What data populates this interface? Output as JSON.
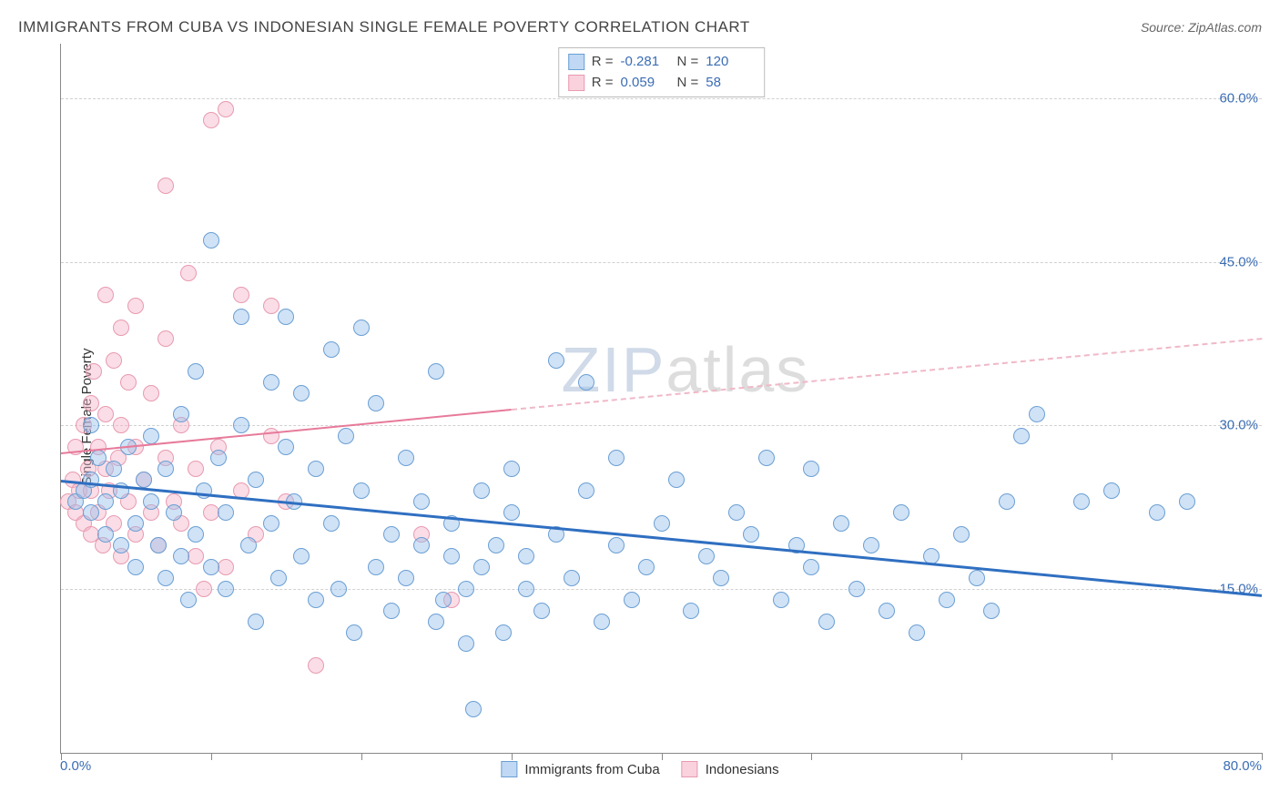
{
  "title": "IMMIGRANTS FROM CUBA VS INDONESIAN SINGLE FEMALE POVERTY CORRELATION CHART",
  "source": "Source: ZipAtlas.com",
  "ylabel": "Single Female Poverty",
  "watermark": {
    "part1": "ZIP",
    "part2": "atlas"
  },
  "chart": {
    "type": "scatter",
    "background_color": "#ffffff",
    "grid_color": "#d0d0d0",
    "axis_color": "#888888",
    "xlim": [
      0,
      80
    ],
    "ylim": [
      0,
      65
    ],
    "xtick_positions": [
      0,
      10,
      20,
      30,
      40,
      50,
      60,
      70,
      80
    ],
    "xtick_labels": {
      "start": "0.0%",
      "end": "80.0%"
    },
    "ytick_positions": [
      15,
      30,
      45,
      60
    ],
    "ytick_labels": [
      "15.0%",
      "30.0%",
      "45.0%",
      "60.0%"
    ],
    "marker_size": 18,
    "tick_label_color": "#3b6db5",
    "label_fontsize": 15,
    "title_fontsize": 17
  },
  "series": {
    "cuba": {
      "label": "Immigrants from Cuba",
      "fill_color": "rgba(150,190,235,0.45)",
      "stroke_color": "#6a9fd4",
      "trend_color": "#2f6fc1",
      "trend": {
        "x1": 0,
        "y1": 25,
        "x2": 80,
        "y2": 14.5
      },
      "R": "-0.281",
      "N": "120",
      "points": [
        [
          1,
          23
        ],
        [
          1.5,
          24
        ],
        [
          2,
          22
        ],
        [
          2,
          25
        ],
        [
          2.5,
          27
        ],
        [
          2,
          30
        ],
        [
          3,
          20
        ],
        [
          3,
          23
        ],
        [
          3.5,
          26
        ],
        [
          4,
          19
        ],
        [
          4,
          24
        ],
        [
          4.5,
          28
        ],
        [
          5,
          21
        ],
        [
          5,
          17
        ],
        [
          5.5,
          25
        ],
        [
          6,
          23
        ],
        [
          6,
          29
        ],
        [
          6.5,
          19
        ],
        [
          7,
          16
        ],
        [
          7,
          26
        ],
        [
          7.5,
          22
        ],
        [
          8,
          18
        ],
        [
          8,
          31
        ],
        [
          8.5,
          14
        ],
        [
          9,
          20
        ],
        [
          9,
          35
        ],
        [
          9.5,
          24
        ],
        [
          10,
          17
        ],
        [
          10,
          47
        ],
        [
          10.5,
          27
        ],
        [
          11,
          15
        ],
        [
          11,
          22
        ],
        [
          12,
          30
        ],
        [
          12,
          40
        ],
        [
          12.5,
          19
        ],
        [
          13,
          25
        ],
        [
          13,
          12
        ],
        [
          14,
          21
        ],
        [
          14,
          34
        ],
        [
          14.5,
          16
        ],
        [
          15,
          28
        ],
        [
          15,
          40
        ],
        [
          15.5,
          23
        ],
        [
          16,
          18
        ],
        [
          16,
          33
        ],
        [
          17,
          14
        ],
        [
          17,
          26
        ],
        [
          18,
          21
        ],
        [
          18,
          37
        ],
        [
          18.5,
          15
        ],
        [
          19,
          29
        ],
        [
          19.5,
          11
        ],
        [
          20,
          39
        ],
        [
          20,
          24
        ],
        [
          21,
          17
        ],
        [
          21,
          32
        ],
        [
          22,
          13
        ],
        [
          22,
          20
        ],
        [
          23,
          27
        ],
        [
          23,
          16
        ],
        [
          24,
          19
        ],
        [
          24,
          23
        ],
        [
          25,
          35
        ],
        [
          25,
          12
        ],
        [
          25.5,
          14
        ],
        [
          26,
          18
        ],
        [
          26,
          21
        ],
        [
          27,
          10
        ],
        [
          27,
          15
        ],
        [
          27.5,
          4
        ],
        [
          28,
          24
        ],
        [
          28,
          17
        ],
        [
          29,
          19
        ],
        [
          29.5,
          11
        ],
        [
          30,
          22
        ],
        [
          30,
          26
        ],
        [
          31,
          15
        ],
        [
          31,
          18
        ],
        [
          32,
          13
        ],
        [
          33,
          20
        ],
        [
          33,
          36
        ],
        [
          34,
          16
        ],
        [
          35,
          24
        ],
        [
          35,
          34
        ],
        [
          36,
          12
        ],
        [
          37,
          19
        ],
        [
          37,
          27
        ],
        [
          38,
          14
        ],
        [
          39,
          17
        ],
        [
          40,
          21
        ],
        [
          41,
          25
        ],
        [
          42,
          13
        ],
        [
          43,
          18
        ],
        [
          44,
          16
        ],
        [
          45,
          22
        ],
        [
          46,
          20
        ],
        [
          47,
          27
        ],
        [
          48,
          14
        ],
        [
          49,
          19
        ],
        [
          50,
          17
        ],
        [
          50,
          26
        ],
        [
          51,
          12
        ],
        [
          52,
          21
        ],
        [
          53,
          15
        ],
        [
          54,
          19
        ],
        [
          55,
          13
        ],
        [
          56,
          22
        ],
        [
          57,
          11
        ],
        [
          58,
          18
        ],
        [
          59,
          14
        ],
        [
          60,
          20
        ],
        [
          61,
          16
        ],
        [
          62,
          13
        ],
        [
          63,
          23
        ],
        [
          64,
          29
        ],
        [
          65,
          31
        ],
        [
          68,
          23
        ],
        [
          70,
          24
        ],
        [
          73,
          22
        ],
        [
          75,
          23
        ]
      ]
    },
    "indonesia": {
      "label": "Indonesians",
      "fill_color": "rgba(245,180,200,0.45)",
      "stroke_color": "#e89ab0",
      "trend_color": "#e77a9a",
      "trend_dash_color": "#f0b8c8",
      "trend_solid": {
        "x1": 0,
        "y1": 27.5,
        "x2": 30,
        "y2": 31.5
      },
      "trend_dash": {
        "x1": 30,
        "y1": 31.5,
        "x2": 80,
        "y2": 38
      },
      "R": "0.059",
      "N": "58",
      "points": [
        [
          0.5,
          23
        ],
        [
          0.8,
          25
        ],
        [
          1,
          22
        ],
        [
          1,
          28
        ],
        [
          1.2,
          24
        ],
        [
          1.5,
          21
        ],
        [
          1.5,
          30
        ],
        [
          1.8,
          26
        ],
        [
          2,
          20
        ],
        [
          2,
          32
        ],
        [
          2,
          24
        ],
        [
          2.2,
          35
        ],
        [
          2.5,
          22
        ],
        [
          2.5,
          28
        ],
        [
          2.8,
          19
        ],
        [
          3,
          26
        ],
        [
          3,
          31
        ],
        [
          3,
          42
        ],
        [
          3.2,
          24
        ],
        [
          3.5,
          21
        ],
        [
          3.5,
          36
        ],
        [
          3.8,
          27
        ],
        [
          4,
          18
        ],
        [
          4,
          30
        ],
        [
          4,
          39
        ],
        [
          4.5,
          23
        ],
        [
          4.5,
          34
        ],
        [
          5,
          20
        ],
        [
          5,
          28
        ],
        [
          5,
          41
        ],
        [
          5.5,
          25
        ],
        [
          6,
          22
        ],
        [
          6,
          33
        ],
        [
          6.5,
          19
        ],
        [
          7,
          27
        ],
        [
          7,
          52
        ],
        [
          7,
          38
        ],
        [
          7.5,
          23
        ],
        [
          8,
          21
        ],
        [
          8,
          30
        ],
        [
          8.5,
          44
        ],
        [
          9,
          18
        ],
        [
          9,
          26
        ],
        [
          9.5,
          15
        ],
        [
          10,
          58
        ],
        [
          10,
          22
        ],
        [
          10.5,
          28
        ],
        [
          11,
          59
        ],
        [
          11,
          17
        ],
        [
          12,
          24
        ],
        [
          12,
          42
        ],
        [
          13,
          20
        ],
        [
          14,
          29
        ],
        [
          14,
          41
        ],
        [
          15,
          23
        ],
        [
          17,
          8
        ],
        [
          24,
          20
        ],
        [
          26,
          14
        ]
      ]
    }
  },
  "stats_box": {
    "rows": [
      {
        "swatch": "blue",
        "R_label": "R =",
        "R": "-0.281",
        "N_label": "N =",
        "N": "120"
      },
      {
        "swatch": "pink",
        "R_label": "R =",
        "R": "0.059",
        "N_label": "N =",
        "N": "58"
      }
    ]
  },
  "bottom_legend": [
    {
      "swatch": "blue",
      "label": "Immigrants from Cuba"
    },
    {
      "swatch": "pink",
      "label": "Indonesians"
    }
  ]
}
